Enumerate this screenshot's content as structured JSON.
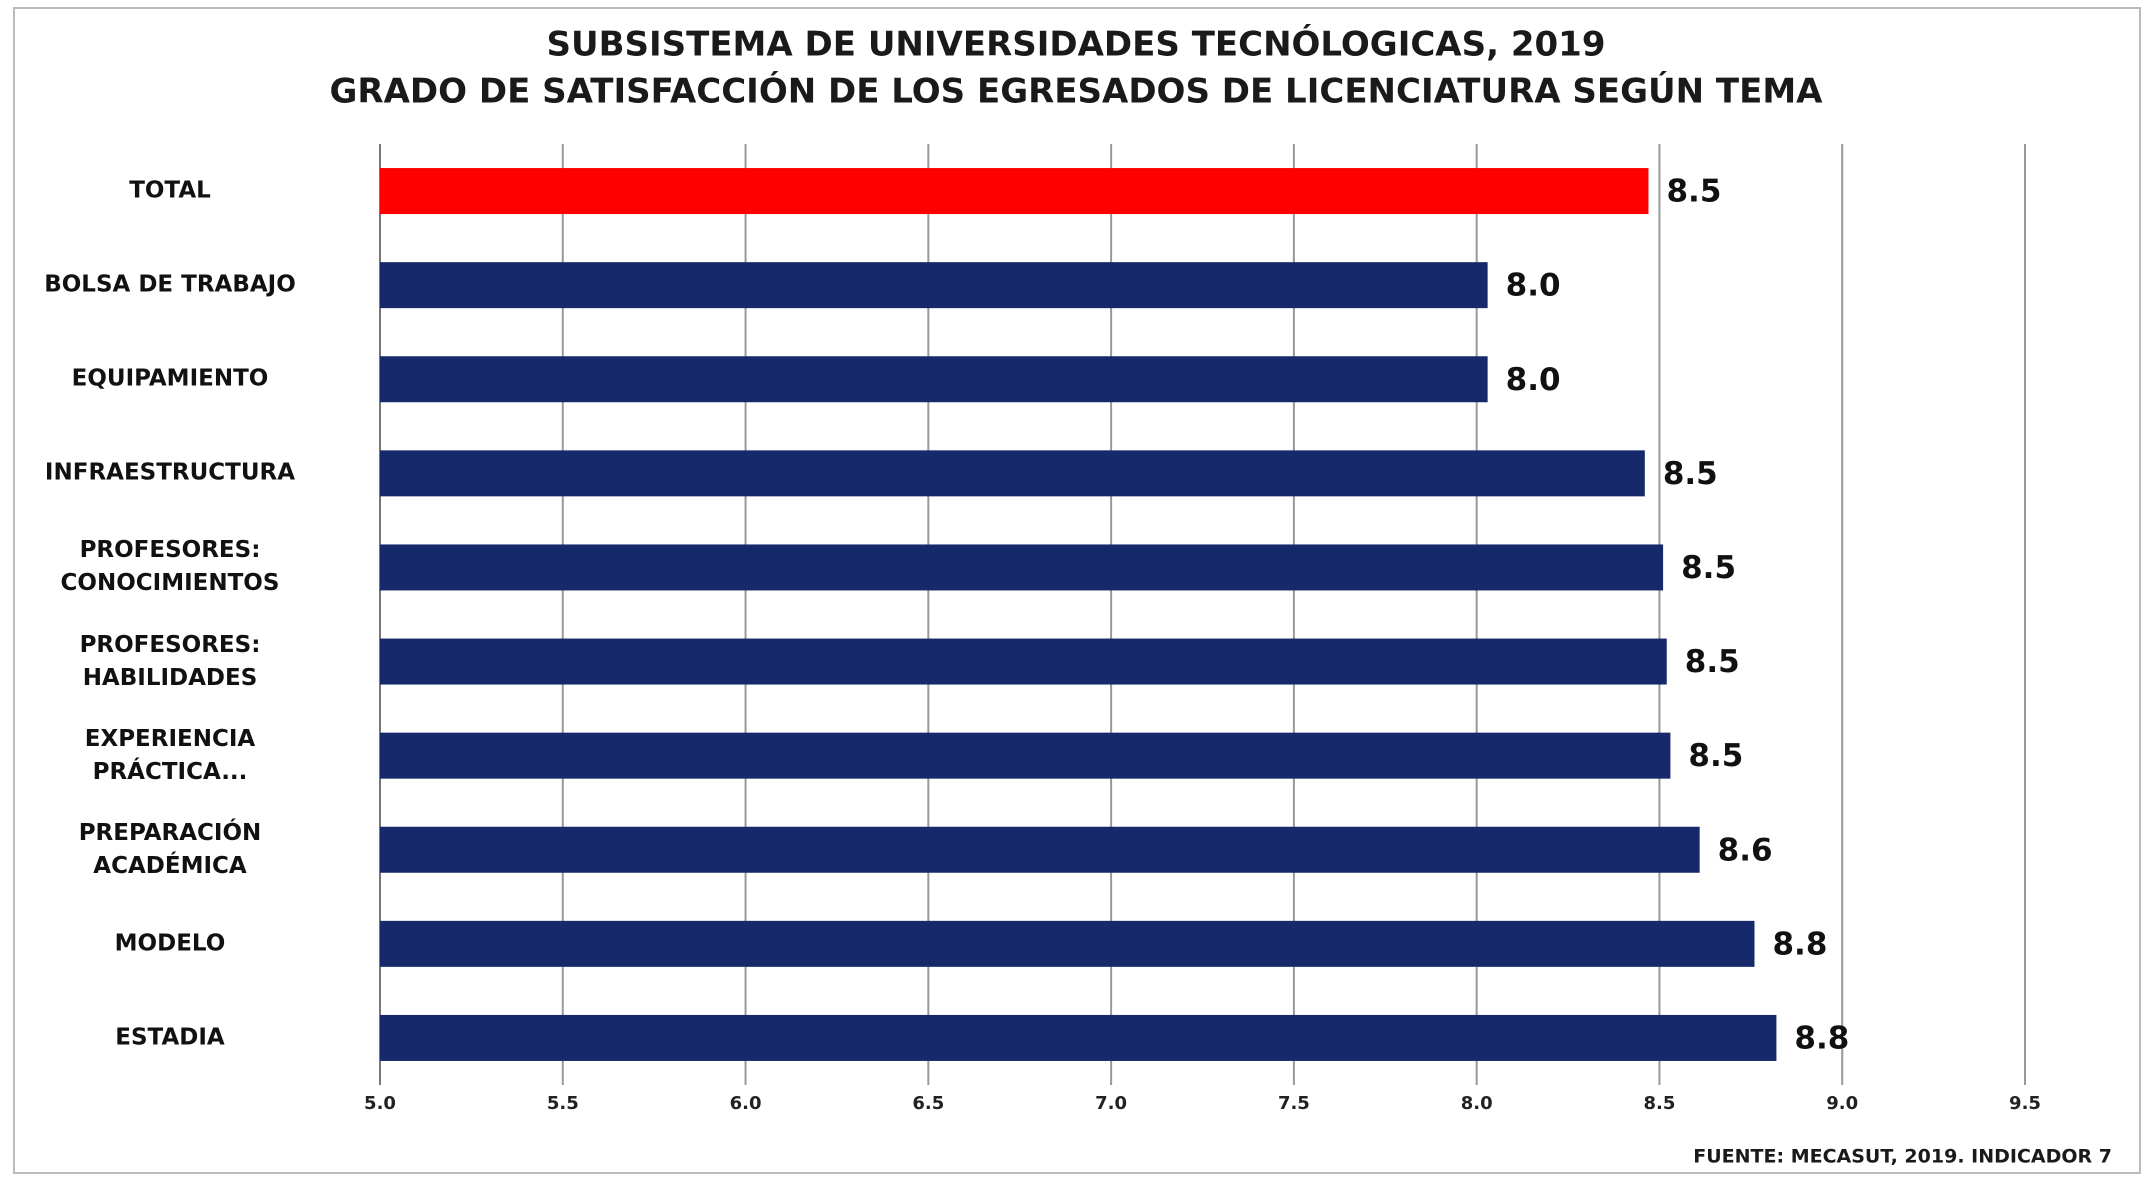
{
  "chart_data": {
    "type": "barh",
    "title": "SUBSISTEMA DE UNIVERSIDADES TECNÓLOGICAS, 2019",
    "subtitle": "GRADO DE SATISFACCIÓN DE LOS EGRESADOS DE LICENCIATURA SEGÚN TEMA",
    "categories": [
      "TOTAL",
      "BOLSA DE TRABAJO",
      "EQUIPAMIENTO",
      "INFRAESTRUCTURA",
      "PROFESORES:\nCONOCIMIENTOS",
      "PROFESORES:\nHABILIDADES",
      "EXPERIENCIA\nPRÁCTICA...",
      "PREPARACIÓN\nACADÉMICA",
      "MODELO",
      "ESTADIA"
    ],
    "values": [
      8.47,
      8.03,
      8.03,
      8.46,
      8.51,
      8.52,
      8.53,
      8.61,
      8.76,
      8.82
    ],
    "value_labels": [
      "8.5",
      "8.0",
      "8.0",
      "8.5",
      "8.5",
      "8.5",
      "8.5",
      "8.6",
      "8.8",
      "8.8"
    ],
    "colors": [
      "#ff0000",
      "#162a6b",
      "#162a6b",
      "#162a6b",
      "#162a6b",
      "#162a6b",
      "#162a6b",
      "#162a6b",
      "#162a6b",
      "#162a6b"
    ],
    "xlim": [
      5,
      9.5
    ],
    "xticks": [
      {
        "value": 5,
        "label": "5.0"
      },
      {
        "value": 5.5,
        "label": "5.5"
      },
      {
        "value": 6,
        "label": "6.0"
      },
      {
        "value": 6.5,
        "label": "6.5"
      },
      {
        "value": 7,
        "label": "7.0"
      },
      {
        "value": 7.5,
        "label": "7.5"
      },
      {
        "value": 8,
        "label": "8.0"
      },
      {
        "value": 8.5,
        "label": "8.5"
      },
      {
        "value": 9,
        "label": "9.0"
      },
      {
        "value": 9.5,
        "label": "9.5"
      }
    ],
    "grid": true,
    "source": "FUENTE: MECASUT, 2019.  INDICADOR 7"
  }
}
